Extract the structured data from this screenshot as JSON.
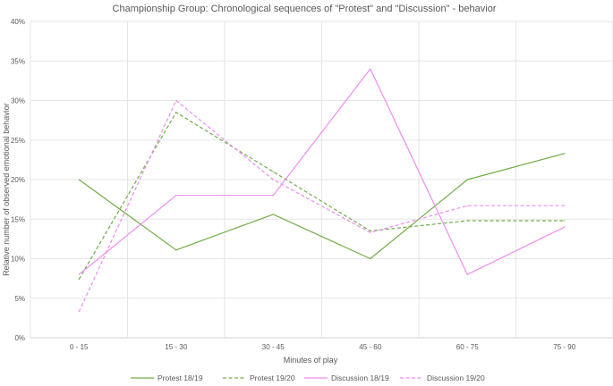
{
  "chart_data": {
    "type": "line",
    "title": "Championship Group: Chronological sequences of \"Protest\" and \"Discussion\" - behavior",
    "xlabel": "Minutes of play",
    "ylabel": "Relative number of observed emotional behavior",
    "categories": [
      "0 - 15",
      "15 - 30",
      "30 - 45",
      "45 - 60",
      "60 - 75",
      "75 - 90"
    ],
    "ylim": [
      0,
      40
    ],
    "yticks": [
      0,
      5,
      10,
      15,
      20,
      25,
      30,
      35,
      40
    ],
    "ytick_labels": [
      "0%",
      "5%",
      "10%",
      "15%",
      "20%",
      "25%",
      "30%",
      "35%",
      "40%"
    ],
    "grid": true,
    "legend_position": "bottom",
    "series": [
      {
        "name": "Protest 18/19",
        "color": "#70AD47",
        "dash": "solid",
        "values": [
          20.0,
          11.1,
          15.6,
          10.0,
          20.0,
          23.3
        ]
      },
      {
        "name": "Protest 19/20",
        "color": "#70AD47",
        "dash": "dashed",
        "values": [
          7.4,
          28.5,
          21.0,
          13.5,
          14.8,
          14.8
        ]
      },
      {
        "name": "Discussion 18/19",
        "color": "#F08CF0",
        "dash": "solid",
        "values": [
          8.0,
          18.0,
          18.0,
          34.0,
          8.0,
          14.0
        ]
      },
      {
        "name": "Discussion 19/20",
        "color": "#F08CF0",
        "dash": "dashed",
        "values": [
          3.3,
          30.0,
          20.0,
          13.3,
          16.7,
          16.7
        ]
      }
    ]
  }
}
